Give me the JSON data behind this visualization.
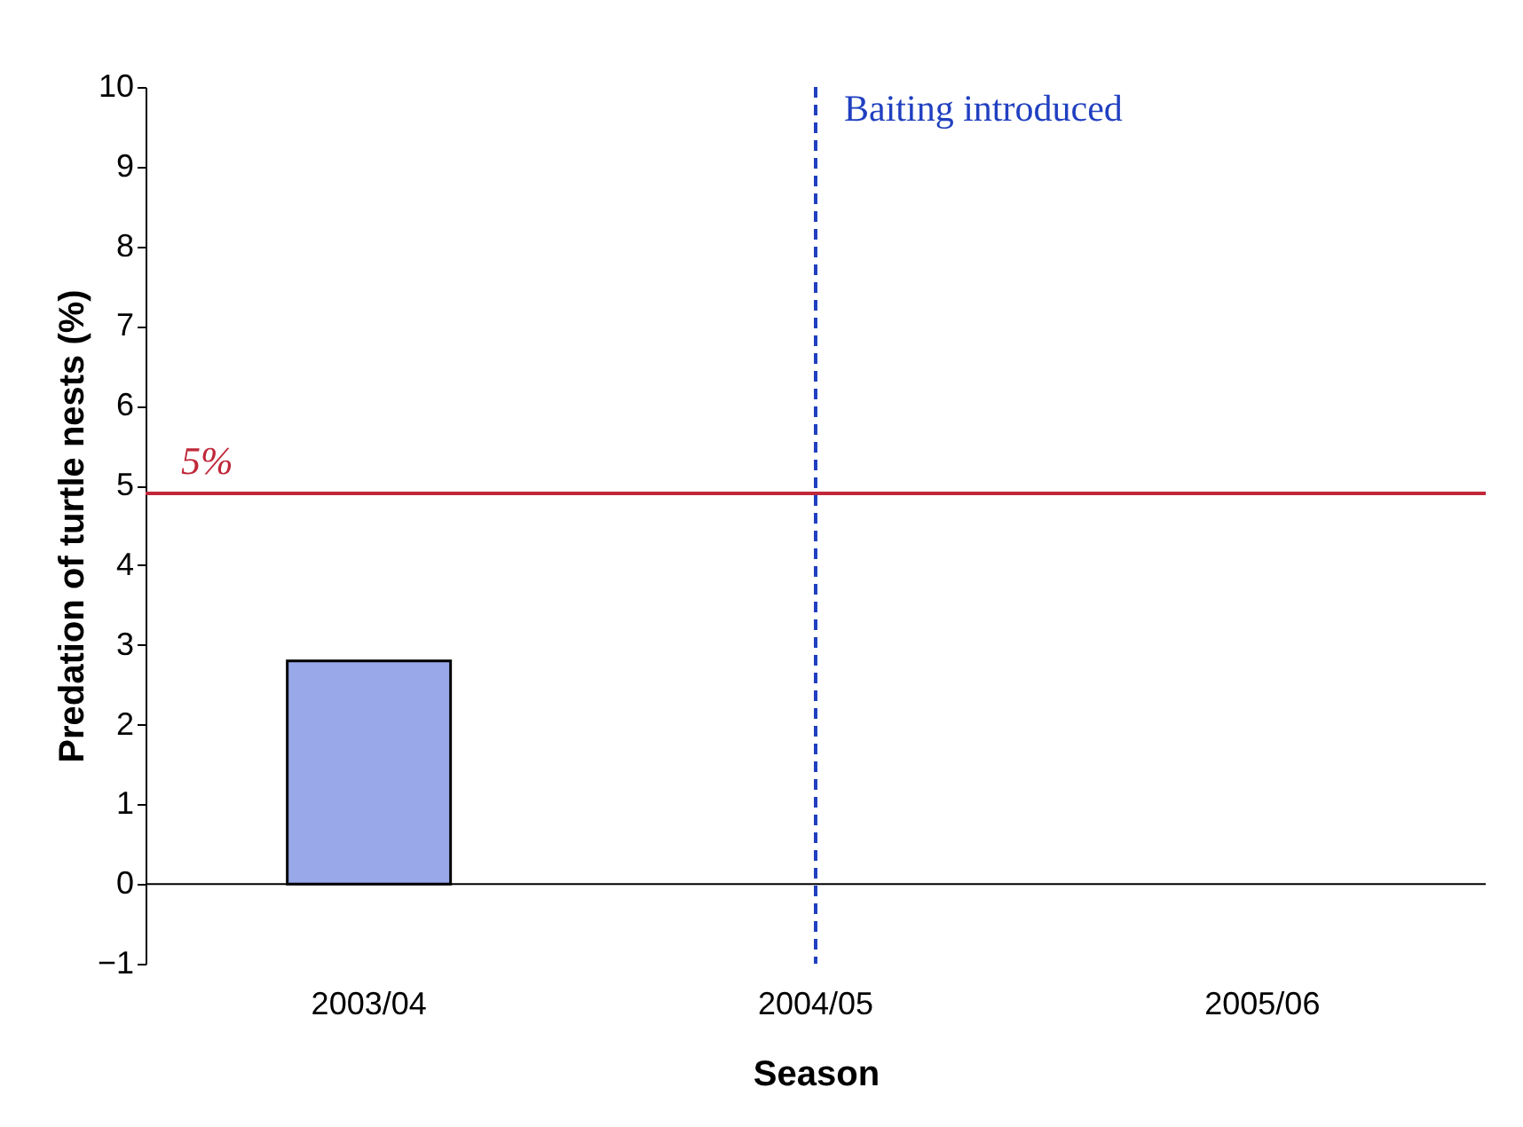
{
  "chart_data": {
    "type": "bar",
    "xlabel": "Season",
    "ylabel": "Predation of turtle nests (%)",
    "categories": [
      "2003/04",
      "2004/05",
      "2005/06"
    ],
    "values": [
      2.8,
      null,
      null
    ],
    "color": "#98a8e8",
    "ylim": [
      -1,
      10
    ],
    "yticks": [
      -1,
      0,
      1,
      2,
      3,
      4,
      5,
      6,
      7,
      8,
      9,
      10
    ],
    "grid": false,
    "ref_lines": [
      {
        "axis": "y",
        "value": 4.9,
        "label": "5%",
        "color": "#c0283a",
        "line_style": "solid"
      },
      {
        "axis": "x",
        "value": "2004/05",
        "label": "Baiting introduced",
        "color": "#2040c0",
        "line_style": "dashed"
      }
    ]
  }
}
